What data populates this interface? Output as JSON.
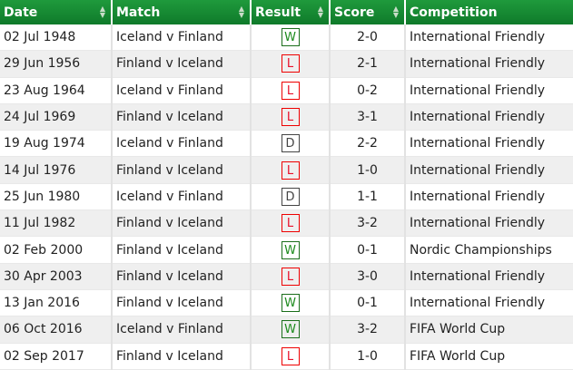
{
  "headers": [
    "Date",
    "Match",
    "Result",
    "Score",
    "Competition"
  ],
  "colors": {
    "header": "#158a33",
    "win": "#1b8a1b",
    "loss": "#e8102a",
    "draw": "#444444"
  },
  "rows": [
    {
      "date": "02 Jul 1948",
      "match": "Iceland v Finland",
      "result": "W",
      "score": "2-0",
      "competition": "International Friendly"
    },
    {
      "date": "29 Jun 1956",
      "match": "Finland v Iceland",
      "result": "L",
      "score": "2-1",
      "competition": "International Friendly"
    },
    {
      "date": "23 Aug 1964",
      "match": "Iceland v Finland",
      "result": "L",
      "score": "0-2",
      "competition": "International Friendly"
    },
    {
      "date": "24 Jul 1969",
      "match": "Finland v Iceland",
      "result": "L",
      "score": "3-1",
      "competition": "International Friendly"
    },
    {
      "date": "19 Aug 1974",
      "match": "Iceland v Finland",
      "result": "D",
      "score": "2-2",
      "competition": "International Friendly"
    },
    {
      "date": "14 Jul 1976",
      "match": "Finland v Iceland",
      "result": "L",
      "score": "1-0",
      "competition": "International Friendly"
    },
    {
      "date": "25 Jun 1980",
      "match": "Iceland v Finland",
      "result": "D",
      "score": "1-1",
      "competition": "International Friendly"
    },
    {
      "date": "11 Jul 1982",
      "match": "Finland v Iceland",
      "result": "L",
      "score": "3-2",
      "competition": "International Friendly"
    },
    {
      "date": "02 Feb 2000",
      "match": "Finland v Iceland",
      "result": "W",
      "score": "0-1",
      "competition": "Nordic Championships"
    },
    {
      "date": "30 Apr 2003",
      "match": "Finland v Iceland",
      "result": "L",
      "score": "3-0",
      "competition": "International Friendly"
    },
    {
      "date": "13 Jan 2016",
      "match": "Finland v Iceland",
      "result": "W",
      "score": "0-1",
      "competition": "International Friendly"
    },
    {
      "date": "06 Oct 2016",
      "match": "Iceland v Finland",
      "result": "W",
      "score": "3-2",
      "competition": "FIFA World Cup"
    },
    {
      "date": "02 Sep 2017",
      "match": "Finland v Iceland",
      "result": "L",
      "score": "1-0",
      "competition": "FIFA World Cup"
    }
  ]
}
